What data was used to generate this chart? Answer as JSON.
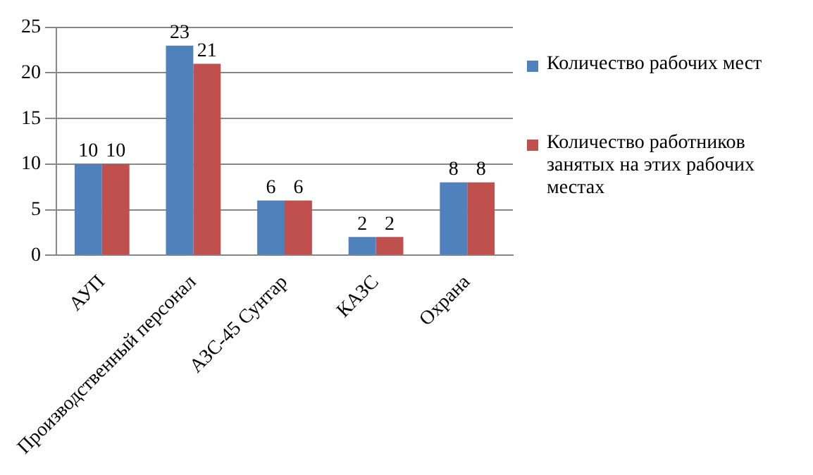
{
  "chart_data": {
    "type": "bar",
    "categories": [
      "АУП",
      "Производственный персонал",
      "АЗС-45 Сунтар",
      "КАЗС",
      "Охрана"
    ],
    "series": [
      {
        "name": "Количество рабочих мест",
        "color": "#4f81bd",
        "values": [
          10,
          23,
          6,
          2,
          8
        ]
      },
      {
        "name": "Количество работников занятых на этих рабочих местах",
        "color": "#c0504d",
        "values": [
          10,
          21,
          6,
          2,
          8
        ]
      }
    ],
    "ylim": [
      0,
      25
    ],
    "yticks": [
      0,
      5,
      10,
      15,
      20,
      25
    ],
    "grid": "y",
    "legend": "right",
    "data_labels": true
  }
}
